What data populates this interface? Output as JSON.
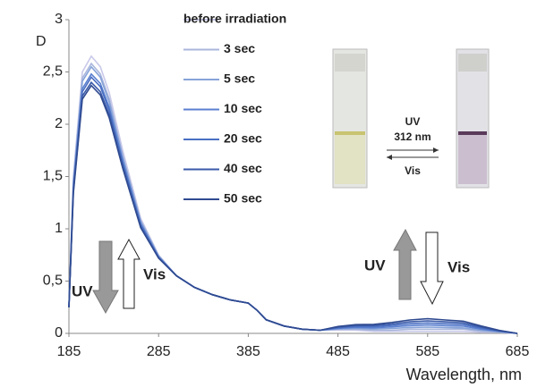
{
  "chart_data": {
    "type": "line",
    "y_label": "D",
    "x_label": "Wavelength, nm",
    "x": [
      185,
      190,
      200,
      210,
      220,
      230,
      245,
      265,
      285,
      305,
      325,
      345,
      365,
      385,
      395,
      405,
      425,
      445,
      465,
      485,
      505,
      525,
      545,
      565,
      585,
      605,
      625,
      645,
      665,
      685
    ],
    "series": [
      {
        "name": "before irradiation",
        "color": "#c9c9ea",
        "values": [
          0.25,
          1.5,
          2.5,
          2.65,
          2.55,
          2.3,
          1.75,
          1.1,
          0.75,
          0.55,
          0.44,
          0.37,
          0.32,
          0.29,
          0.22,
          0.13,
          0.07,
          0.04,
          0.03,
          0.03,
          0.03,
          0.02,
          0.02,
          0.02,
          0.02,
          0.02,
          0.02,
          0.01,
          0.01,
          0
        ]
      },
      {
        "name": "3 sec",
        "color": "#a9b6dc",
        "values": [
          0.25,
          1.46,
          2.44,
          2.58,
          2.48,
          2.24,
          1.7,
          1.08,
          0.74,
          0.55,
          0.44,
          0.37,
          0.32,
          0.29,
          0.22,
          0.13,
          0.07,
          0.04,
          0.03,
          0.04,
          0.04,
          0.03,
          0.03,
          0.04,
          0.04,
          0.04,
          0.04,
          0.02,
          0.01,
          0
        ]
      },
      {
        "name": "5 sec",
        "color": "#86a3d8",
        "values": [
          0.25,
          1.44,
          2.41,
          2.55,
          2.45,
          2.21,
          1.69,
          1.07,
          0.74,
          0.55,
          0.44,
          0.37,
          0.32,
          0.29,
          0.22,
          0.13,
          0.07,
          0.04,
          0.03,
          0.042,
          0.048,
          0.042,
          0.048,
          0.056,
          0.06,
          0.056,
          0.052,
          0.03,
          0.016,
          0
        ]
      },
      {
        "name": "10 sec",
        "color": "#5b80d0",
        "values": [
          0.25,
          1.41,
          2.34,
          2.48,
          2.39,
          2.16,
          1.65,
          1.05,
          0.73,
          0.55,
          0.44,
          0.37,
          0.32,
          0.29,
          0.22,
          0.13,
          0.07,
          0.04,
          0.03,
          0.048,
          0.057,
          0.053,
          0.062,
          0.074,
          0.08,
          0.074,
          0.068,
          0.04,
          0.019,
          0
        ]
      },
      {
        "name": "20 sec",
        "color": "#4a6fc2",
        "values": [
          0.25,
          1.39,
          2.31,
          2.45,
          2.36,
          2.13,
          1.63,
          1.04,
          0.73,
          0.55,
          0.44,
          0.37,
          0.32,
          0.29,
          0.22,
          0.13,
          0.07,
          0.04,
          0.03,
          0.054,
          0.066,
          0.064,
          0.076,
          0.092,
          0.1,
          0.092,
          0.084,
          0.05,
          0.022,
          0
        ]
      },
      {
        "name": "40 sec",
        "color": "#3a5aa8",
        "values": [
          0.25,
          1.36,
          2.27,
          2.4,
          2.31,
          2.09,
          1.6,
          1.02,
          0.72,
          0.55,
          0.44,
          0.37,
          0.32,
          0.29,
          0.22,
          0.13,
          0.07,
          0.04,
          0.03,
          0.06,
          0.075,
          0.075,
          0.09,
          0.11,
          0.12,
          0.11,
          0.1,
          0.06,
          0.025,
          0
        ]
      },
      {
        "name": "50 sec",
        "color": "#2f4a90",
        "values": [
          0.25,
          1.34,
          2.24,
          2.37,
          2.28,
          2.06,
          1.58,
          1.01,
          0.72,
          0.55,
          0.44,
          0.37,
          0.32,
          0.29,
          0.22,
          0.13,
          0.07,
          0.04,
          0.03,
          0.066,
          0.084,
          0.086,
          0.104,
          0.128,
          0.14,
          0.128,
          0.116,
          0.07,
          0.028,
          0
        ]
      }
    ],
    "xlim": [
      185,
      685
    ],
    "ylim": [
      0,
      3
    ],
    "xticks": [
      185,
      285,
      385,
      485,
      585,
      685
    ],
    "yticks": [
      0,
      {
        "value": 0.5,
        "label": "0,5"
      },
      1,
      {
        "value": 1.5,
        "label": "1,5"
      },
      2,
      {
        "value": 2.5,
        "label": "2,5"
      },
      3
    ],
    "grid": false,
    "legend": "top-center",
    "annotations": [
      "UV",
      "Vis",
      "UV",
      "Vis"
    ],
    "photo_labels": [
      "UV",
      "312 nm",
      "Vis"
    ]
  }
}
